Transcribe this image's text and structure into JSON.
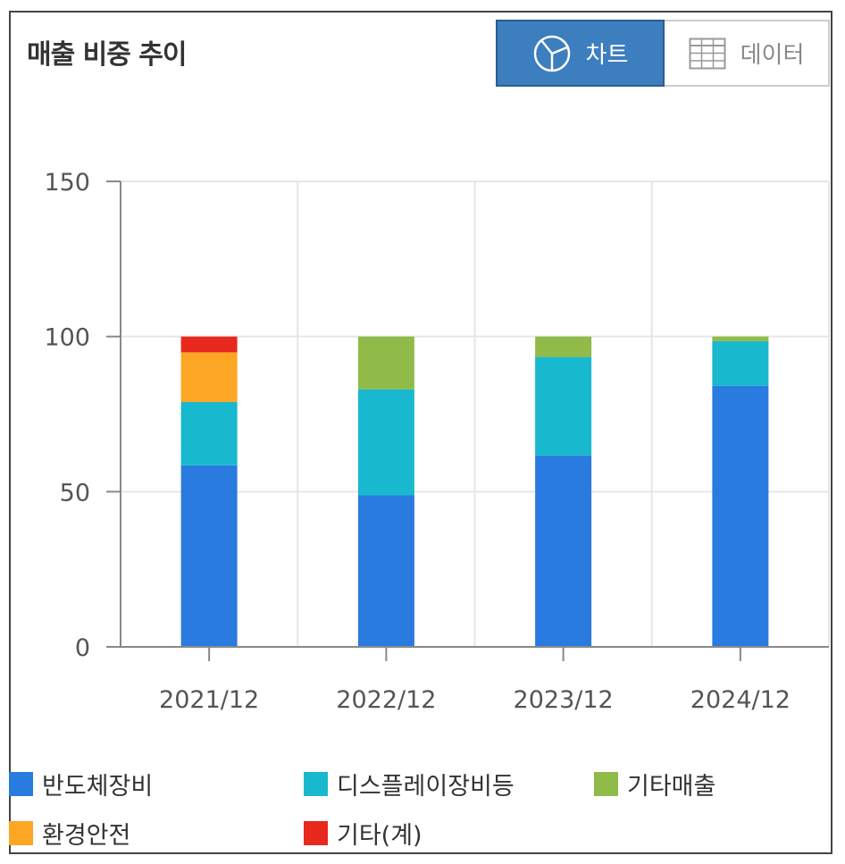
{
  "header": {
    "title": "매출 비중 추이",
    "chart_tab": "차트",
    "data_tab": "데이터"
  },
  "colors": {
    "toggle_active_bg": "#3d7ebf",
    "grid": "#e6e6e6",
    "axis": "#888888"
  },
  "chart_data": {
    "type": "bar",
    "stacked": true,
    "categories": [
      "2021/12",
      "2022/12",
      "2023/12",
      "2024/12"
    ],
    "ylim": [
      0,
      150
    ],
    "yticks": [
      0,
      50,
      100,
      150
    ],
    "grid": true,
    "legend_position": "bottom",
    "series": [
      {
        "name": "반도체장비",
        "color": "#2a7be0",
        "values": [
          58.5,
          48.8,
          61.7,
          84.1
        ]
      },
      {
        "name": "디스플레이장비등",
        "color": "#18b8cf",
        "values": [
          20.4,
          34.2,
          31.7,
          14.4
        ]
      },
      {
        "name": "기타매출",
        "color": "#90bb48",
        "values": [
          0,
          17.0,
          6.6,
          1.5
        ]
      },
      {
        "name": "환경안전",
        "color": "#fca624",
        "values": [
          16.0,
          0,
          0,
          0
        ]
      },
      {
        "name": "기타(계)",
        "color": "#e8291d",
        "values": [
          5.1,
          0,
          0,
          0
        ]
      }
    ]
  }
}
